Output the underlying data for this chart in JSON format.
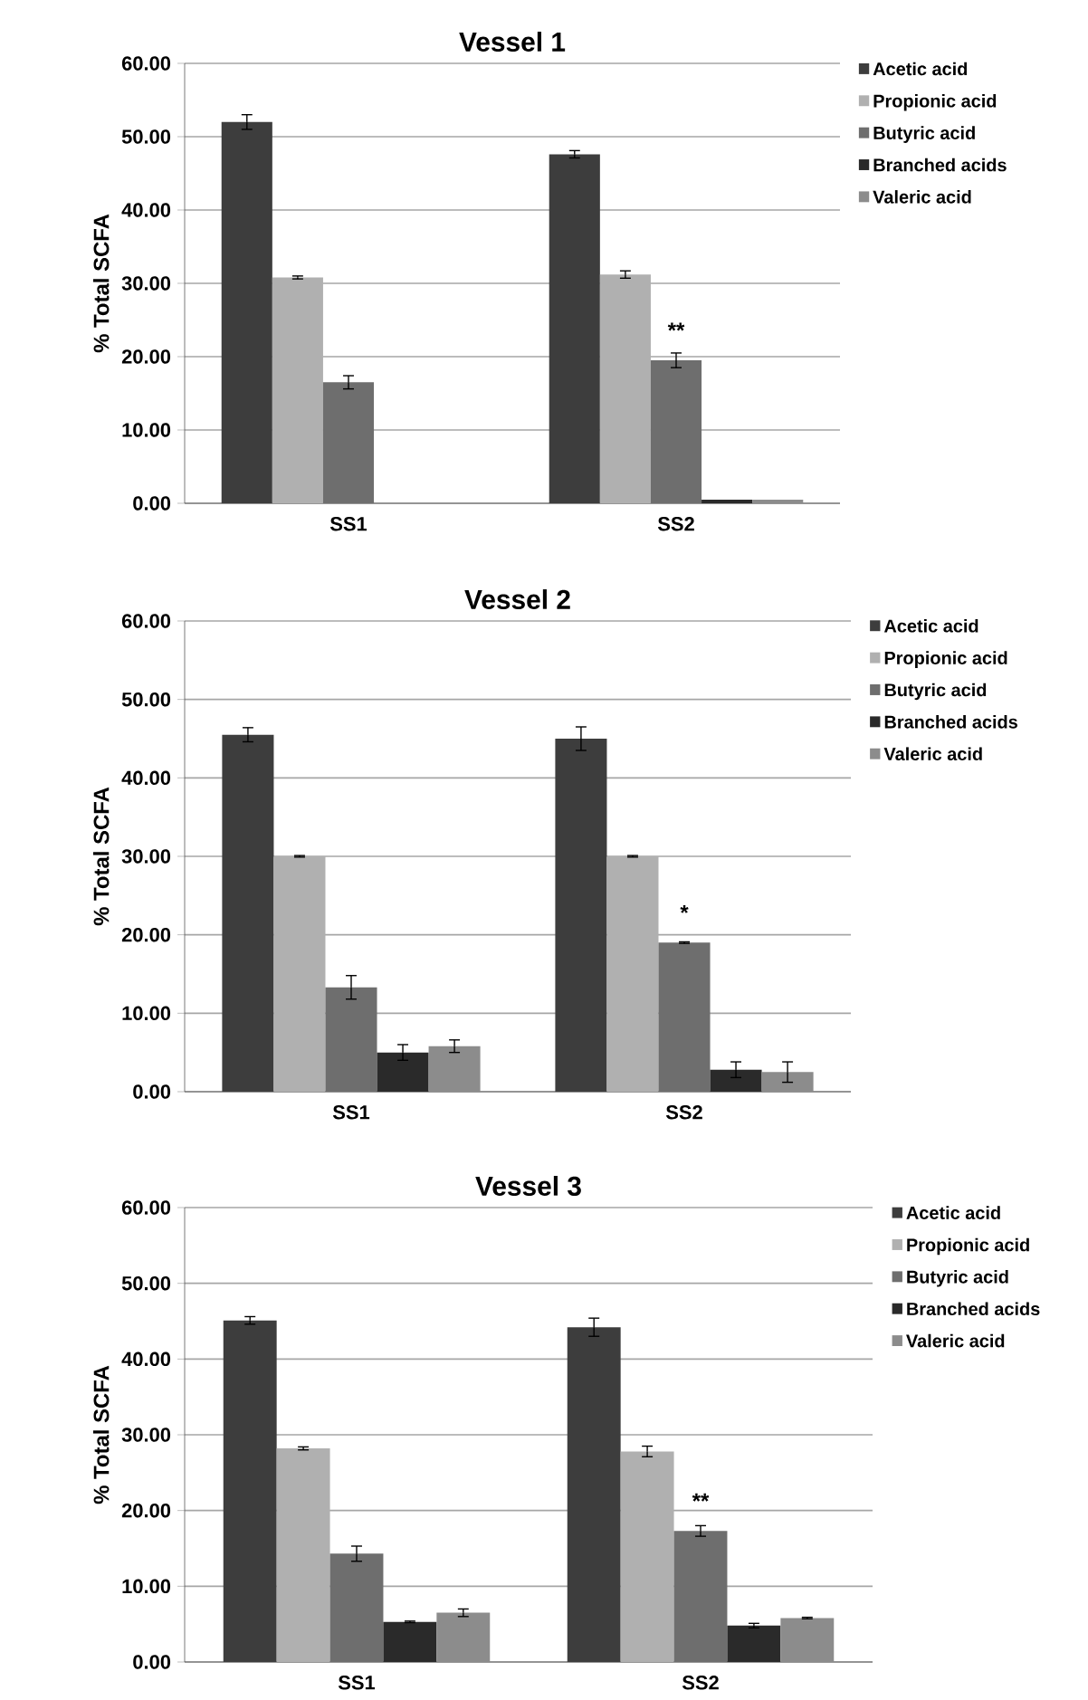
{
  "chart_data": [
    {
      "type": "bar",
      "title": "Vessel 1",
      "ylabel": "% Total SCFA",
      "categories": [
        "SS1",
        "SS2"
      ],
      "series": [
        {
          "name": "Acetic acid",
          "color": "#3d3d3d",
          "values": [
            52.0,
            47.6
          ],
          "errors": [
            1.0,
            0.5
          ]
        },
        {
          "name": "Propionic acid",
          "color": "#b0b0b0",
          "values": [
            30.8,
            31.2
          ],
          "errors": [
            0.2,
            0.5
          ]
        },
        {
          "name": "Butyric acid",
          "color": "#6e6e6e",
          "values": [
            16.5,
            19.5
          ],
          "errors": [
            0.9,
            1.0
          ]
        },
        {
          "name": "Branched acids",
          "color": "#2a2a2a",
          "values": [
            null,
            0.5
          ]
        },
        {
          "name": "Valeric acid",
          "color": "#8c8c8c",
          "values": [
            null,
            0.5
          ]
        }
      ],
      "ylim": [
        0,
        60
      ],
      "yticks": [
        {
          "value": 0,
          "label": "0.00"
        },
        {
          "value": 10,
          "label": "10.00"
        },
        {
          "value": 20,
          "label": "20.00"
        },
        {
          "value": 30,
          "label": "30.00"
        },
        {
          "value": 40,
          "label": "40.00"
        },
        {
          "value": 50,
          "label": "50.00"
        },
        {
          "value": 60,
          "label": "60.00"
        }
      ],
      "grid": "y",
      "legend": "right",
      "annotations": [
        {
          "text": "**",
          "x": "SS2",
          "y": 19.5
        }
      ]
    },
    {
      "type": "bar",
      "title": "Vessel 2",
      "ylabel": "% Total SCFA",
      "categories": [
        "SS1",
        "SS2"
      ],
      "series": [
        {
          "name": "Acetic acid",
          "color": "#3d3d3d",
          "values": [
            45.5,
            45.0
          ],
          "errors": [
            0.9,
            1.5
          ]
        },
        {
          "name": "Propionic acid",
          "color": "#b0b0b0",
          "values": [
            30.0,
            30.0
          ],
          "errors": [
            0.1,
            0.1
          ]
        },
        {
          "name": "Butyric acid",
          "color": "#6e6e6e",
          "values": [
            13.3,
            19.0
          ],
          "errors": [
            1.5,
            0.1
          ]
        },
        {
          "name": "Branched acids",
          "color": "#2a2a2a",
          "values": [
            5.0,
            2.8
          ],
          "errors": [
            1.0,
            1.0
          ]
        },
        {
          "name": "Valeric acid",
          "color": "#8c8c8c",
          "values": [
            5.8,
            2.5
          ],
          "errors": [
            0.8,
            1.3
          ]
        }
      ],
      "ylim": [
        0,
        60
      ],
      "yticks": [
        {
          "value": 0,
          "label": "0.00"
        },
        {
          "value": 10,
          "label": "10.00"
        },
        {
          "value": 20,
          "label": "20.00"
        },
        {
          "value": 30,
          "label": "30.00"
        },
        {
          "value": 40,
          "label": "40.00"
        },
        {
          "value": 50,
          "label": "50.00"
        },
        {
          "value": 60,
          "label": "60.00"
        }
      ],
      "grid": "y",
      "legend": "right",
      "annotations": [
        {
          "text": "*",
          "x": "SS2",
          "y": 19.0
        }
      ]
    },
    {
      "type": "bar",
      "title": "Vessel 3",
      "ylabel": "% Total SCFA",
      "categories": [
        "SS1",
        "SS2"
      ],
      "series": [
        {
          "name": "Acetic acid",
          "color": "#3d3d3d",
          "values": [
            45.1,
            44.2
          ],
          "errors": [
            0.5,
            1.2
          ]
        },
        {
          "name": "Propionic acid",
          "color": "#b0b0b0",
          "values": [
            28.2,
            27.8
          ],
          "errors": [
            0.2,
            0.7
          ]
        },
        {
          "name": "Butyric acid",
          "color": "#6e6e6e",
          "values": [
            14.3,
            17.3
          ],
          "errors": [
            1.0,
            0.7
          ]
        },
        {
          "name": "Branched acids",
          "color": "#2a2a2a",
          "values": [
            5.3,
            4.8
          ],
          "errors": [
            0.1,
            0.3
          ]
        },
        {
          "name": "Valeric acid",
          "color": "#8c8c8c",
          "values": [
            6.5,
            5.8
          ],
          "errors": [
            0.5,
            0.1
          ]
        }
      ],
      "ylim": [
        0,
        60
      ],
      "yticks": [
        {
          "value": 0,
          "label": "0.00"
        },
        {
          "value": 10,
          "label": "10.00"
        },
        {
          "value": 20,
          "label": "20.00"
        },
        {
          "value": 30,
          "label": "30.00"
        },
        {
          "value": 40,
          "label": "40.00"
        },
        {
          "value": 50,
          "label": "50.00"
        },
        {
          "value": 60,
          "label": "60.00"
        }
      ],
      "grid": "y",
      "legend": "right",
      "annotations": [
        {
          "text": "**",
          "x": "SS2",
          "y": 17.3
        }
      ]
    }
  ]
}
